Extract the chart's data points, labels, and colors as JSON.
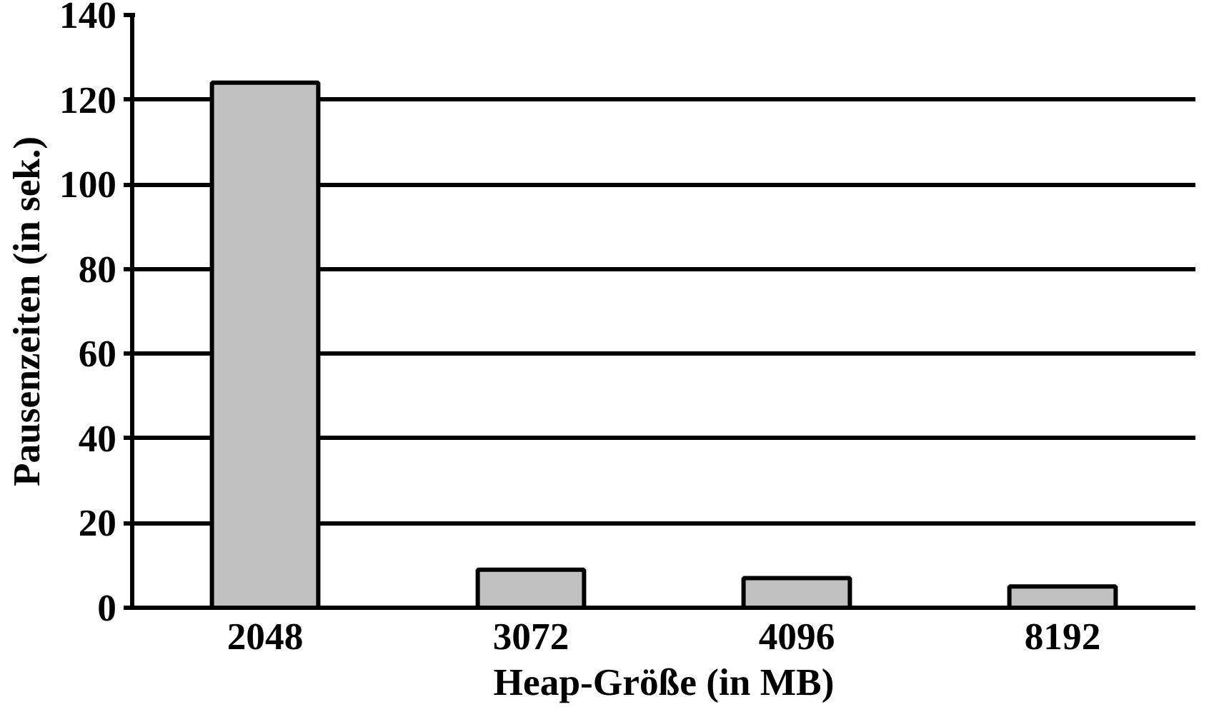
{
  "chart_data": {
    "type": "bar",
    "xlabel": "Heap-Größe (in MB)",
    "ylabel": "Pausenzeiten (in sek.)",
    "categories": [
      "2048",
      "3072",
      "4096",
      "8192"
    ],
    "values": [
      124,
      9,
      7,
      5
    ],
    "color": "#c0c0c0",
    "ylim": [
      0,
      140
    ],
    "yticks": [
      0,
      20,
      40,
      60,
      80,
      100,
      120,
      140
    ],
    "grid": "y"
  }
}
